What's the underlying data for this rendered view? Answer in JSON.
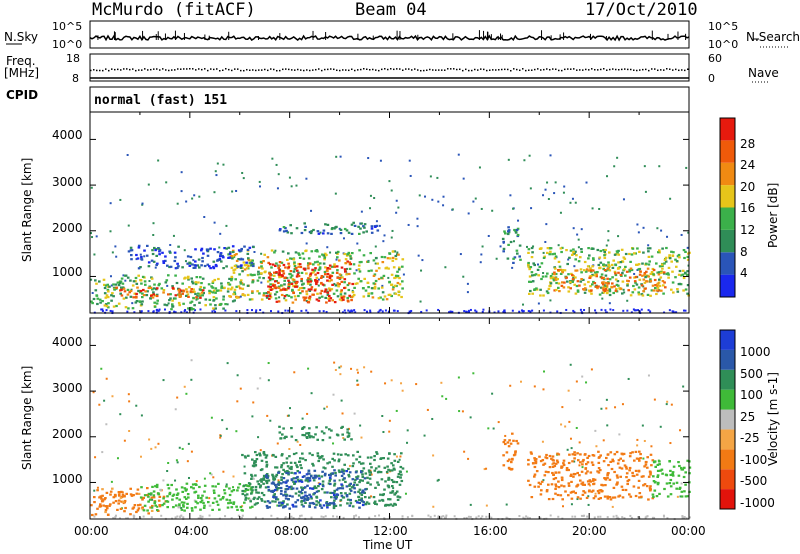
{
  "header": {
    "station": "McMurdo (fitACF)",
    "beam": "Beam 04",
    "date": "17/Oct/2010"
  },
  "noise_panel": {
    "left_label": "N.Sky",
    "right_label": "N.Search",
    "left_ticks": [
      "10^5",
      "10^0"
    ],
    "right_ticks": [
      "10^5",
      "10^0"
    ]
  },
  "freq_panel": {
    "left_label": "Freq.",
    "left_unit": "[MHz]",
    "left_ticks": [
      "18",
      "8"
    ],
    "right_label": "Nave",
    "right_ticks": [
      "60",
      "0"
    ]
  },
  "cpid": {
    "label": "CPID",
    "value": "normal (fast) 151"
  },
  "colors": {
    "power_scale": [
      "#1a28ee",
      "#2a55b8",
      "#2f8d57",
      "#3bb04a",
      "#e6c51a",
      "#f08a12",
      "#ef5a0a",
      "#e61a0e"
    ],
    "velocity_scale": [
      "#e2130b",
      "#ee4a0e",
      "#f27a14",
      "#f4a545",
      "#bdbdbd",
      "#3fba38",
      "#2f8e57",
      "#2a58a8",
      "#1d3dd6"
    ]
  },
  "chart_data": [
    {
      "type": "heatmap",
      "title": "",
      "quantity": "Power",
      "xlabel": "",
      "ylabel": "Slant Range [km]",
      "x_ticks": [
        "00:00",
        "04:00",
        "08:00",
        "12:00",
        "16:00",
        "20:00",
        "00:00"
      ],
      "y_ticks": [
        "1000",
        "2000",
        "3000",
        "4000"
      ],
      "xlim": [
        0,
        24
      ],
      "ylim": [
        200,
        4600
      ],
      "colorbar": {
        "label": "Power [dB]",
        "ticks": [
          "4",
          "8",
          "12",
          "16",
          "20",
          "24",
          "28"
        ],
        "range": [
          0,
          32
        ]
      },
      "grid": false,
      "regions": [
        {
          "t0": 0.0,
          "t1": 5.8,
          "r0": 300,
          "r1": 1050,
          "value": 14
        },
        {
          "t0": 1.0,
          "t1": 4.5,
          "r0": 550,
          "r1": 800,
          "value": 25
        },
        {
          "t0": 5.5,
          "t1": 12.5,
          "r0": 500,
          "r1": 1600,
          "value": 16
        },
        {
          "t0": 7.0,
          "t1": 10.5,
          "r0": 450,
          "r1": 1350,
          "value": 28
        },
        {
          "t0": 17.5,
          "t1": 24.0,
          "r0": 600,
          "r1": 1650,
          "value": 15
        },
        {
          "t0": 18.5,
          "t1": 23.0,
          "r0": 700,
          "r1": 1200,
          "value": 23
        },
        {
          "t0": 7.5,
          "t1": 11.5,
          "r0": 1950,
          "r1": 2200,
          "value": 8
        },
        {
          "t0": 1.5,
          "t1": 6.5,
          "r0": 1200,
          "r1": 1700,
          "value": 6
        },
        {
          "t0": 16.5,
          "t1": 17.2,
          "r0": 1300,
          "r1": 2100,
          "value": 10
        }
      ]
    },
    {
      "type": "heatmap",
      "title": "",
      "quantity": "Velocity",
      "xlabel": "Time UT",
      "ylabel": "Slant Range [km]",
      "x_ticks": [
        "00:00",
        "04:00",
        "08:00",
        "12:00",
        "16:00",
        "20:00",
        "00:00"
      ],
      "y_ticks": [
        "1000",
        "2000",
        "3000",
        "4000"
      ],
      "xlim": [
        0,
        24
      ],
      "ylim": [
        200,
        4600
      ],
      "colorbar": {
        "label": "Velocity [m s-1]",
        "ticks": [
          "1000",
          "500",
          "100",
          "25",
          "-25",
          "-100",
          "-500",
          "-1000"
        ]
      },
      "grid": false,
      "regions": [
        {
          "t0": 0.0,
          "t1": 3.0,
          "r0": 300,
          "r1": 900,
          "value": -150
        },
        {
          "t0": 2.0,
          "t1": 6.5,
          "r0": 400,
          "r1": 1000,
          "value": 40
        },
        {
          "t0": 6.0,
          "t1": 12.5,
          "r0": 500,
          "r1": 1700,
          "value": 300
        },
        {
          "t0": 7.0,
          "t1": 11.0,
          "r0": 450,
          "r1": 1300,
          "value": 800
        },
        {
          "t0": 17.5,
          "t1": 22.5,
          "r0": 650,
          "r1": 1700,
          "value": -200
        },
        {
          "t0": 22.5,
          "t1": 24.0,
          "r0": 700,
          "r1": 1500,
          "value": 60
        },
        {
          "t0": 7.5,
          "t1": 10.5,
          "r0": 1950,
          "r1": 2250,
          "value": 200
        },
        {
          "t0": 16.5,
          "t1": 17.1,
          "r0": 1300,
          "r1": 2100,
          "value": -150
        }
      ]
    }
  ]
}
